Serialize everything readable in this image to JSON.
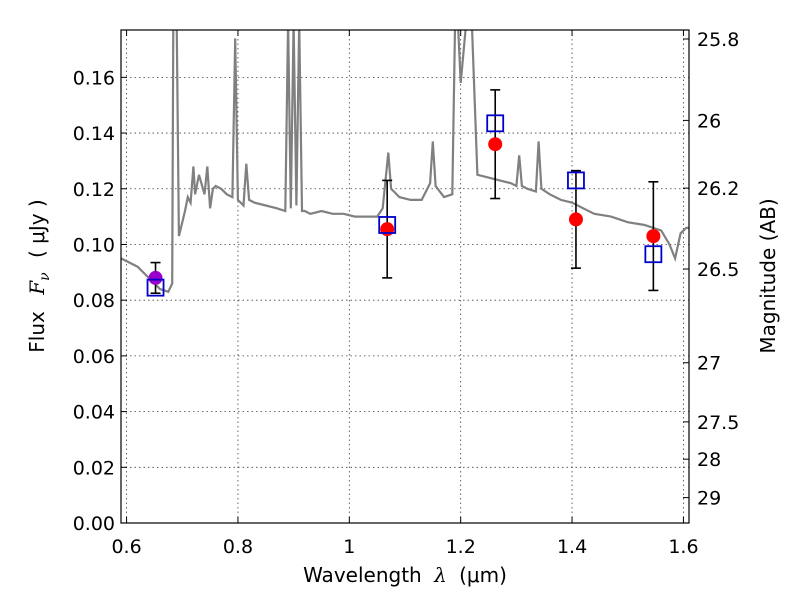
{
  "chart_data": {
    "type": "scatter",
    "xlabel_prefix": "Wavelength",
    "xlabel_symbol": "λ",
    "xlabel_unit": "(μm)",
    "ylabel_prefix": "Flux",
    "ylabel_symbol": "F",
    "ylabel_subscript": "ν",
    "ylabel_unit": "( μJy )",
    "y2label": "Magnitude (AB)",
    "xlim": [
      0.59,
      1.61
    ],
    "ylim": [
      0.0,
      0.177
    ],
    "x_ticks": [
      0.6,
      0.8,
      1.0,
      1.2,
      1.4,
      1.6
    ],
    "x_tick_labels": [
      "0.6",
      "0.8",
      "1",
      "1.2",
      "1.4",
      "1.6"
    ],
    "y_ticks": [
      0.0,
      0.02,
      0.04,
      0.06,
      0.08,
      0.1,
      0.12,
      0.14,
      0.16
    ],
    "y_tick_labels": [
      "0.00",
      "0.02",
      "0.04",
      "0.06",
      "0.08",
      "0.10",
      "0.12",
      "0.14",
      "0.16"
    ],
    "y2_ticks": [
      25.8,
      26,
      26.2,
      26.5,
      27,
      27.5,
      28,
      29
    ],
    "y2_tick_labels": [
      "25.8",
      "26",
      "26.2",
      "26.5",
      "27",
      "27.5",
      "28",
      "29"
    ],
    "grid": true,
    "colors": {
      "spectrum": "#808080",
      "observed": "#ff0000",
      "observed_first": "#9900cc",
      "model": "#0000cc",
      "errorbar": "#000000"
    },
    "spectrum": {
      "x": [
        0.59,
        0.62,
        0.64,
        0.66,
        0.675,
        0.682,
        0.684,
        0.69,
        0.694,
        0.7,
        0.705,
        0.71,
        0.715,
        0.72,
        0.723,
        0.73,
        0.74,
        0.745,
        0.75,
        0.755,
        0.76,
        0.77,
        0.78,
        0.79,
        0.795,
        0.8,
        0.81,
        0.815,
        0.82,
        0.83,
        0.85,
        0.87,
        0.885,
        0.89,
        0.895,
        0.9,
        0.905,
        0.91,
        0.915,
        0.92,
        0.93,
        0.95,
        0.97,
        0.99,
        1.01,
        1.03,
        1.05,
        1.06,
        1.07,
        1.075,
        1.08,
        1.09,
        1.11,
        1.13,
        1.145,
        1.15,
        1.155,
        1.17,
        1.185,
        1.19,
        1.195,
        1.2,
        1.21,
        1.215,
        1.22,
        1.23,
        1.25,
        1.27,
        1.29,
        1.3,
        1.305,
        1.31,
        1.32,
        1.335,
        1.34,
        1.345,
        1.36,
        1.38,
        1.4,
        1.42,
        1.44,
        1.47,
        1.5,
        1.53,
        1.56,
        1.575,
        1.585,
        1.595,
        1.605,
        1.61
      ],
      "y": [
        0.095,
        0.092,
        0.088,
        0.084,
        0.083,
        0.086,
        0.18,
        0.18,
        0.103,
        0.108,
        0.112,
        0.117,
        0.115,
        0.128,
        0.118,
        0.125,
        0.118,
        0.128,
        0.113,
        0.12,
        0.121,
        0.12,
        0.118,
        0.117,
        0.174,
        0.116,
        0.114,
        0.129,
        0.116,
        0.115,
        0.114,
        0.113,
        0.112,
        0.18,
        0.113,
        0.18,
        0.114,
        0.18,
        0.112,
        0.112,
        0.111,
        0.112,
        0.111,
        0.111,
        0.11,
        0.11,
        0.11,
        0.113,
        0.133,
        0.12,
        0.119,
        0.117,
        0.116,
        0.116,
        0.122,
        0.137,
        0.121,
        0.117,
        0.118,
        0.18,
        0.18,
        0.158,
        0.18,
        0.18,
        0.18,
        0.125,
        0.124,
        0.123,
        0.122,
        0.121,
        0.132,
        0.121,
        0.12,
        0.119,
        0.137,
        0.12,
        0.118,
        0.116,
        0.115,
        0.113,
        0.111,
        0.11,
        0.108,
        0.107,
        0.105,
        0.1,
        0.095,
        0.104,
        0.106,
        0.106
      ]
    },
    "observed": [
      {
        "x": 0.652,
        "y": 0.088,
        "err": 0.0055,
        "first": true
      },
      {
        "x": 1.068,
        "y": 0.1055,
        "err": 0.0175
      },
      {
        "x": 1.262,
        "y": 0.136,
        "err": 0.0195
      },
      {
        "x": 1.407,
        "y": 0.109,
        "err": 0.0175
      },
      {
        "x": 1.546,
        "y": 0.103,
        "err": 0.0195
      }
    ],
    "model": [
      {
        "x": 0.652,
        "y": 0.0845
      },
      {
        "x": 1.068,
        "y": 0.107
      },
      {
        "x": 1.262,
        "y": 0.1435
      },
      {
        "x": 1.407,
        "y": 0.123
      },
      {
        "x": 1.546,
        "y": 0.0965
      }
    ]
  }
}
